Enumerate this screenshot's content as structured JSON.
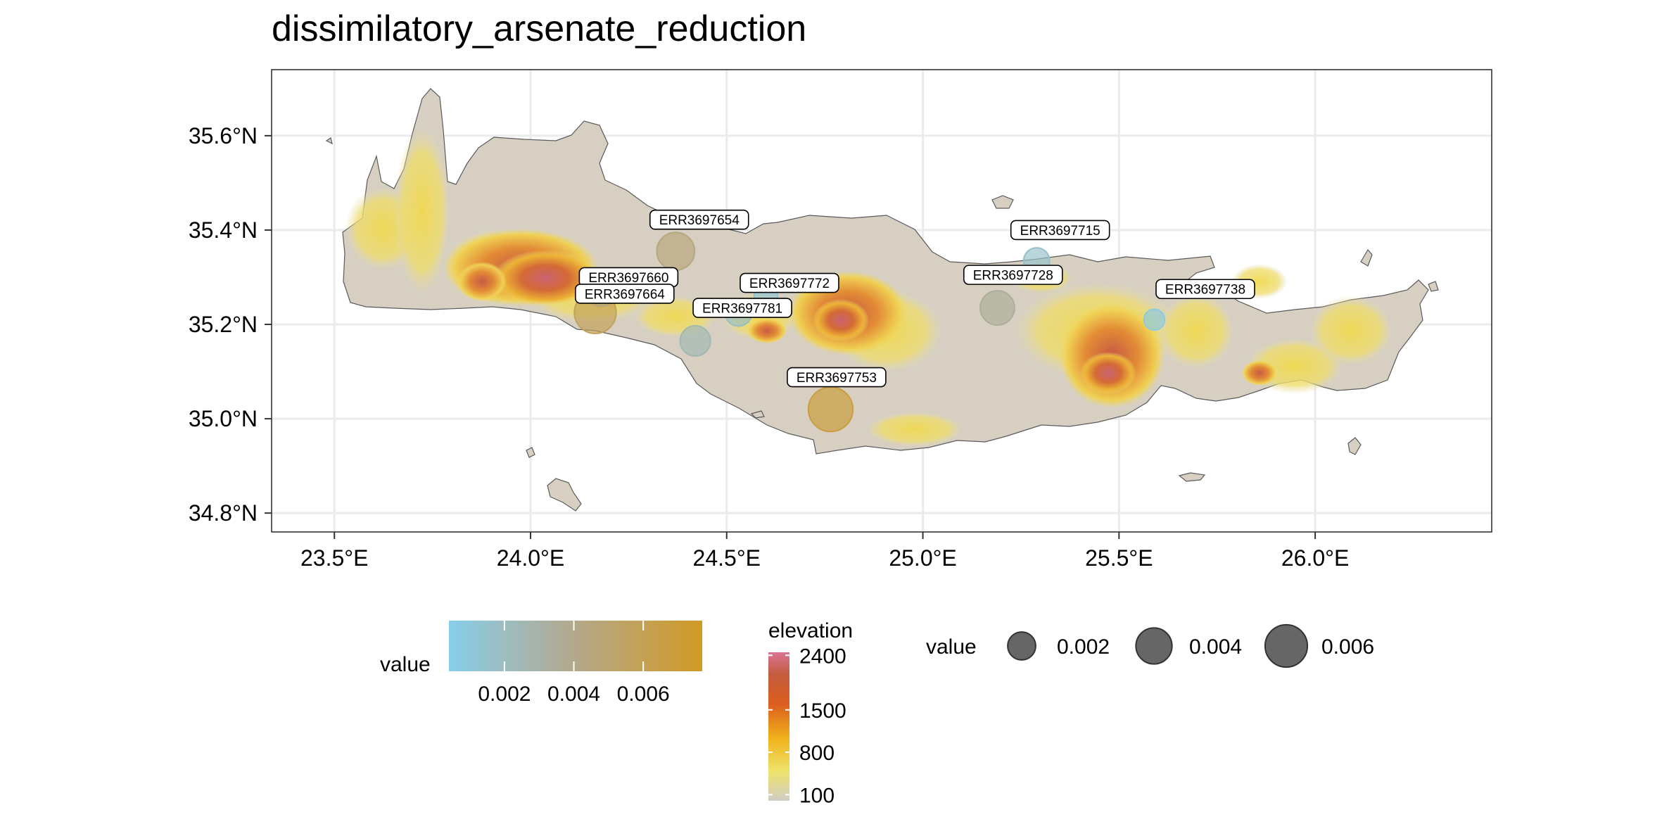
{
  "title": "dissimilatory_arsenate_reduction",
  "chart_data": {
    "type": "scatter",
    "title": "dissimilatory_arsenate_reduction",
    "xlabel": "",
    "ylabel": "",
    "xlim": [
      23.34,
      26.45
    ],
    "ylim": [
      34.76,
      35.74
    ],
    "grid": true,
    "x_ticks": [
      {
        "value": 23.5,
        "label": "23.5°E"
      },
      {
        "value": 24.0,
        "label": "24.0°E"
      },
      {
        "value": 24.5,
        "label": "24.5°E"
      },
      {
        "value": 25.0,
        "label": "25.0°E"
      },
      {
        "value": 25.5,
        "label": "25.5°E"
      },
      {
        "value": 26.0,
        "label": "26.0°E"
      }
    ],
    "y_ticks": [
      {
        "value": 35.6,
        "label": "35.6°N"
      },
      {
        "value": 35.4,
        "label": "35.4°N"
      },
      {
        "value": 35.2,
        "label": "35.2°N"
      },
      {
        "value": 35.0,
        "label": "35.0°N"
      },
      {
        "value": 34.8,
        "label": "34.8°N"
      }
    ],
    "samples": [
      {
        "id": "ERR3697654",
        "lon": 24.37,
        "lat": 35.355,
        "value": 0.0045,
        "label_lon": 24.43,
        "label_lat": 35.422
      },
      {
        "id": "ERR3697660",
        "lon": 24.18,
        "lat": 35.27,
        "value": 0.0024,
        "label_lon": 24.25,
        "label_lat": 35.3
      },
      {
        "id": "ERR3697664",
        "lon": 24.165,
        "lat": 35.225,
        "value": 0.0058,
        "label_lon": 24.24,
        "label_lat": 35.265
      },
      {
        "id": "ERR3697772",
        "lon": 24.6,
        "lat": 35.26,
        "value": 0.0012,
        "label_lon": 24.66,
        "label_lat": 35.288
      },
      {
        "id": "ERR3697781",
        "lon": 24.53,
        "lat": 35.225,
        "value": 0.0018,
        "label_lon": 24.54,
        "label_lat": 35.235
      },
      {
        "id": "ERR3697753",
        "lon": 24.765,
        "lat": 35.02,
        "value": 0.0068,
        "label_lon": 24.78,
        "label_lat": 35.088
      },
      {
        "id": "ERR3697715",
        "lon": 25.29,
        "lat": 35.335,
        "value": 0.0016,
        "label_lon": 25.35,
        "label_lat": 35.4
      },
      {
        "id": "ERR3697728",
        "lon": 25.19,
        "lat": 35.235,
        "value": 0.0035,
        "label_lon": 25.23,
        "label_lat": 35.305
      },
      {
        "id": "ERR3697738",
        "lon": 25.59,
        "lat": 35.21,
        "value": 0.0008,
        "label_lon": 25.72,
        "label_lat": 35.275
      },
      {
        "id": "",
        "lon": 24.42,
        "lat": 35.165,
        "value": 0.0025,
        "label_lon": null,
        "label_lat": null
      }
    ],
    "legend_color": {
      "title": "value",
      "labels": [
        {
          "value": 0.002,
          "label": "0.002"
        },
        {
          "value": 0.004,
          "label": "0.004"
        },
        {
          "value": 0.006,
          "label": "0.006"
        }
      ],
      "range": [
        0.0004,
        0.0077
      ],
      "colors": [
        "#87ceeb",
        "#b4a88a",
        "#d19a24"
      ],
      "placement": "bottom"
    },
    "legend_elevation": {
      "title": "elevation",
      "labels": [
        {
          "value": 2400,
          "label": "2400"
        },
        {
          "value": 1500,
          "label": "1500"
        },
        {
          "value": 800,
          "label": "800"
        },
        {
          "value": 100,
          "label": "100"
        }
      ],
      "range": [
        0,
        2450
      ],
      "colors": [
        "#d0ccc6",
        "#efe36a",
        "#f0b21c",
        "#dc5e1f",
        "#c45c3c",
        "#d97496"
      ],
      "placement": "bottom"
    },
    "legend_size": {
      "title": "value",
      "entries": [
        {
          "value": 0.002,
          "label": "0.002"
        },
        {
          "value": 0.004,
          "label": "0.004"
        },
        {
          "value": 0.006,
          "label": "0.006"
        }
      ],
      "placement": "bottom"
    }
  }
}
